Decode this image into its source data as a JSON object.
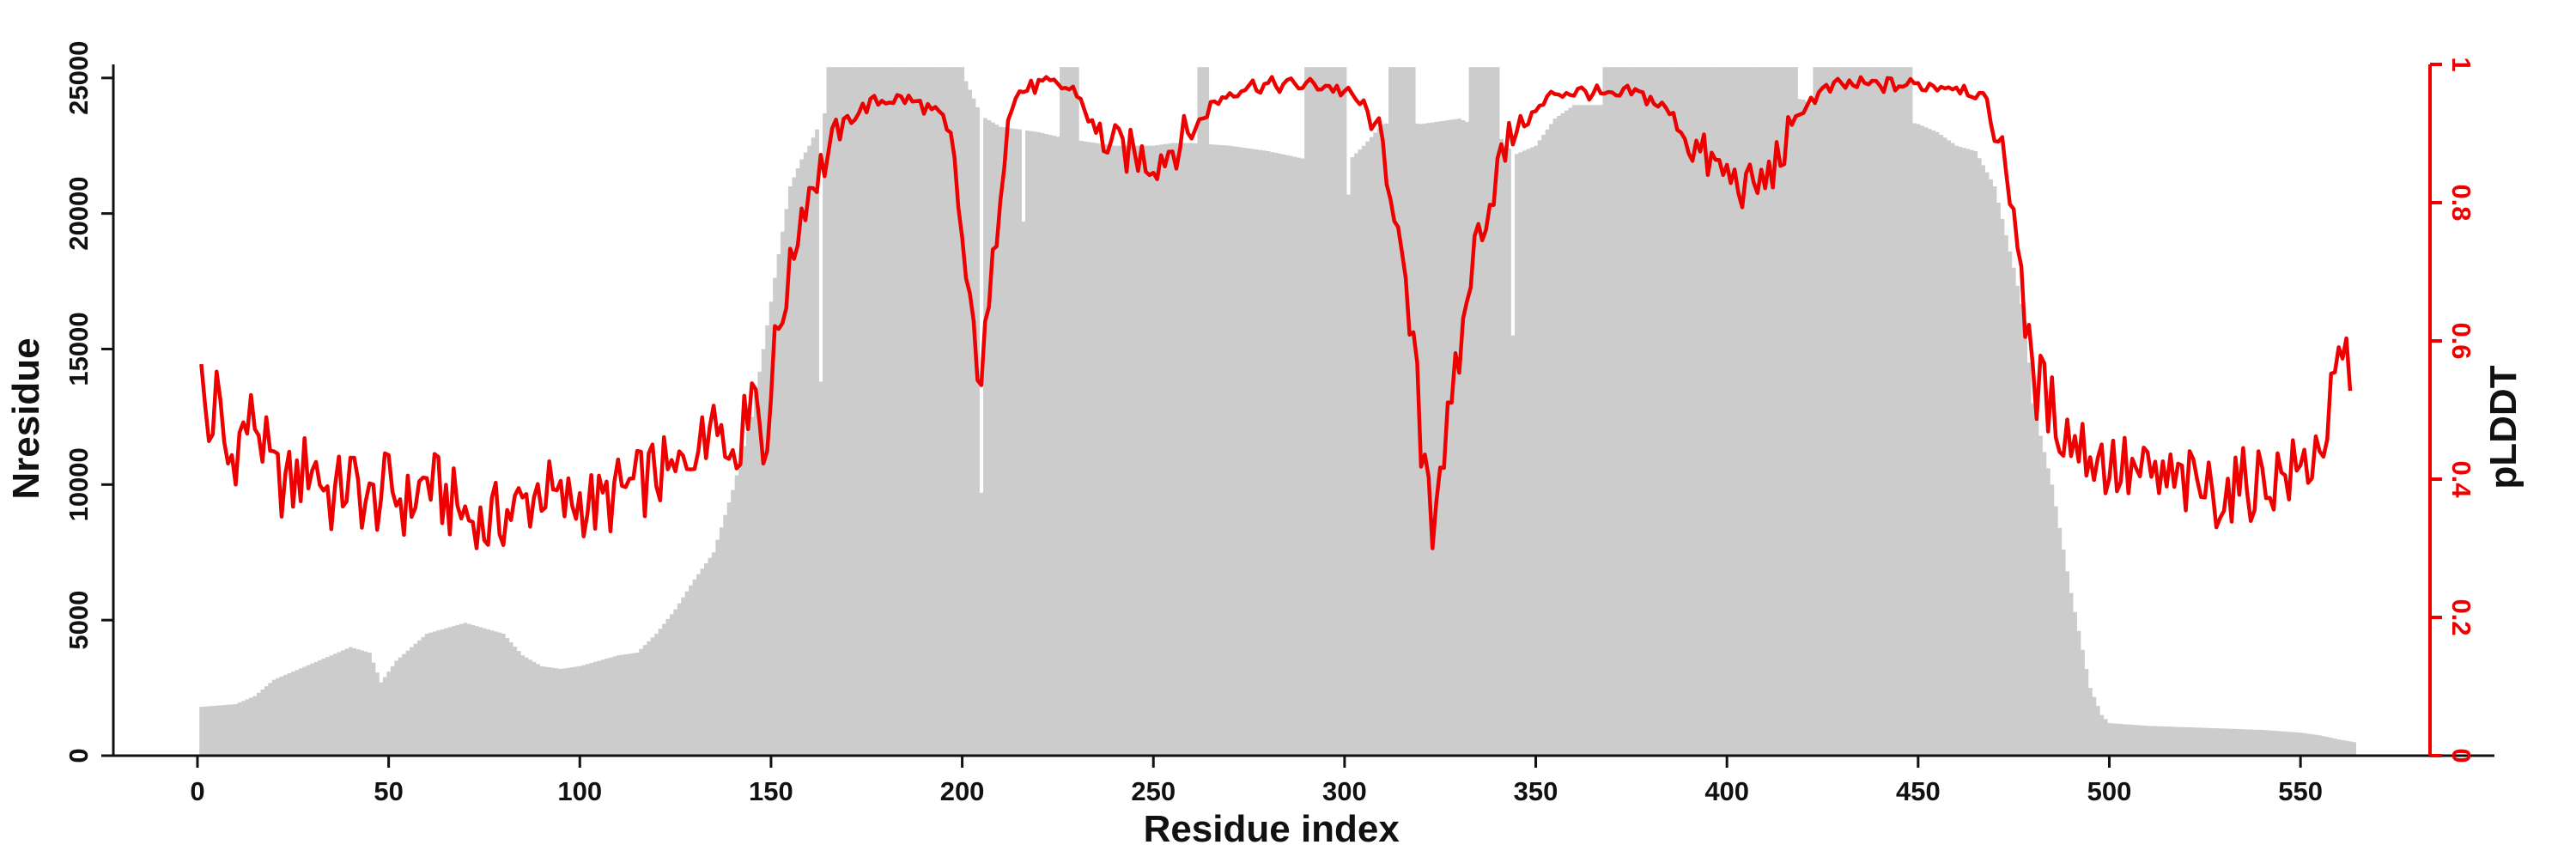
{
  "colors": {
    "bars": "#cccccc",
    "line": "#ee0000",
    "axis": "#111111",
    "right_axis": "#ee0000"
  },
  "chart_data": {
    "type": "bar+line",
    "xlabel": "Residue index",
    "ylabel_left": "Nresidue",
    "ylabel_right": "pLDDT",
    "xlim": [
      -22,
      585
    ],
    "ylim_left": [
      0,
      25500
    ],
    "ylim_right": [
      0,
      1
    ],
    "x_ticks": [
      0,
      50,
      100,
      150,
      200,
      250,
      300,
      350,
      400,
      450,
      500,
      550
    ],
    "y_left_ticks": [
      0,
      5000,
      10000,
      15000,
      20000,
      25000
    ],
    "y_right_ticks": [
      0,
      0.2,
      0.4,
      0.6,
      0.8,
      1
    ],
    "x_tick_labels": [
      "0",
      "50",
      "100",
      "150",
      "200",
      "250",
      "300",
      "350",
      "400",
      "450",
      "500",
      "550"
    ],
    "y_left_tick_labels": [
      "0",
      "5000",
      "10000",
      "15000",
      "20000",
      "25000"
    ],
    "y_right_tick_labels": [
      "0",
      "0.2",
      "0.4",
      "0.6",
      "0.8",
      "1"
    ],
    "grid": false,
    "nresidue_profile": {
      "description_points_x": [
        1,
        10,
        15,
        20,
        30,
        40,
        45,
        48,
        52,
        60,
        70,
        80,
        85,
        90,
        95,
        100,
        105,
        110,
        115,
        120,
        125,
        130,
        135,
        140,
        145,
        148,
        152,
        155,
        158,
        160,
        165,
        170,
        175,
        180,
        185,
        190,
        195,
        200,
        205,
        210,
        220,
        226,
        230,
        235,
        240,
        250,
        255,
        260,
        270,
        280,
        290,
        300,
        305,
        310,
        315,
        320,
        330,
        335,
        340,
        342,
        345,
        350,
        355,
        360,
        370,
        380,
        390,
        400,
        410,
        420,
        425,
        430,
        440,
        450,
        455,
        460,
        465,
        470,
        475,
        478,
        480,
        485,
        490,
        495,
        498,
        500,
        510,
        520,
        530,
        540,
        550,
        555,
        560,
        564
      ],
      "description_points_y": [
        1800,
        1900,
        2200,
        2800,
        3400,
        4000,
        3800,
        2700,
        3500,
        4500,
        4900,
        4500,
        3700,
        3300,
        3200,
        3300,
        3500,
        3700,
        3800,
        4500,
        5400,
        6500,
        7500,
        9800,
        12500,
        15000,
        18500,
        21000,
        22000,
        22500,
        24000,
        25000,
        25300,
        25400,
        25400,
        25400,
        25300,
        25200,
        23600,
        23200,
        23000,
        22800,
        22700,
        22600,
        22500,
        22500,
        22600,
        22600,
        22500,
        22300,
        22000,
        21800,
        22500,
        23300,
        23400,
        23300,
        23500,
        23200,
        23000,
        22500,
        22200,
        22500,
        23500,
        24000,
        24000,
        24000,
        24100,
        24300,
        24400,
        24200,
        23800,
        23700,
        23600,
        23300,
        23000,
        22500,
        22300,
        21000,
        18000,
        16000,
        13000,
        10000,
        6000,
        2500,
        1500,
        1200,
        1100,
        1050,
        1000,
        950,
        850,
        750,
        600,
        500
      ],
      "full_coverage_segments": [
        [
          165,
          200
        ],
        [
          226,
          230
        ],
        [
          262,
          264
        ],
        [
          290,
          300
        ],
        [
          312,
          318
        ],
        [
          333,
          340
        ],
        [
          368,
          418
        ],
        [
          423,
          448
        ]
      ],
      "dips": [
        {
          "x": 163,
          "value": 13800
        },
        {
          "x": 205,
          "value": 9700
        },
        {
          "x": 216,
          "value": 19700
        },
        {
          "x": 301,
          "value": 20700
        },
        {
          "x": 344,
          "value": 15500
        }
      ]
    },
    "plddt_profile": {
      "description_points_x": [
        1,
        3,
        5,
        8,
        12,
        15,
        20,
        25,
        30,
        35,
        40,
        45,
        50,
        55,
        60,
        65,
        70,
        75,
        80,
        85,
        90,
        95,
        100,
        105,
        110,
        115,
        120,
        125,
        130,
        133,
        135,
        138,
        140,
        143,
        145,
        148,
        150,
        152,
        154,
        156,
        158,
        160,
        165,
        170,
        175,
        180,
        185,
        190,
        195,
        198,
        200,
        202,
        205,
        207,
        210,
        212,
        215,
        220,
        225,
        230,
        235,
        240,
        245,
        250,
        255,
        260,
        265,
        270,
        275,
        280,
        285,
        290,
        295,
        300,
        305,
        310,
        313,
        315,
        318,
        320,
        322,
        323,
        325,
        328,
        330,
        333,
        335,
        338,
        340,
        345,
        350,
        355,
        360,
        365,
        370,
        375,
        380,
        385,
        390,
        395,
        400,
        405,
        410,
        415,
        420,
        425,
        430,
        440,
        450,
        460,
        465,
        468,
        470,
        473,
        475,
        477,
        478,
        480,
        483,
        485,
        490,
        495,
        500,
        510,
        520,
        530,
        540,
        550,
        555,
        557,
        558,
        560,
        562,
        563
      ],
      "description_points_y": [
        0.54,
        0.46,
        0.52,
        0.42,
        0.47,
        0.49,
        0.4,
        0.39,
        0.43,
        0.37,
        0.4,
        0.36,
        0.39,
        0.36,
        0.4,
        0.37,
        0.35,
        0.33,
        0.35,
        0.36,
        0.39,
        0.36,
        0.37,
        0.36,
        0.38,
        0.39,
        0.41,
        0.4,
        0.46,
        0.44,
        0.56,
        0.43,
        0.46,
        0.47,
        0.57,
        0.44,
        0.53,
        0.62,
        0.67,
        0.73,
        0.79,
        0.82,
        0.87,
        0.92,
        0.94,
        0.95,
        0.95,
        0.94,
        0.92,
        0.86,
        0.74,
        0.64,
        0.56,
        0.64,
        0.83,
        0.93,
        0.96,
        0.97,
        0.97,
        0.96,
        0.9,
        0.88,
        0.87,
        0.86,
        0.88,
        0.9,
        0.94,
        0.96,
        0.97,
        0.97,
        0.97,
        0.97,
        0.97,
        0.96,
        0.94,
        0.88,
        0.8,
        0.7,
        0.58,
        0.46,
        0.41,
        0.34,
        0.43,
        0.48,
        0.58,
        0.7,
        0.76,
        0.8,
        0.85,
        0.91,
        0.93,
        0.96,
        0.96,
        0.96,
        0.95,
        0.96,
        0.95,
        0.93,
        0.89,
        0.86,
        0.84,
        0.82,
        0.83,
        0.88,
        0.94,
        0.96,
        0.97,
        0.97,
        0.97,
        0.97,
        0.96,
        0.94,
        0.9,
        0.85,
        0.79,
        0.72,
        0.6,
        0.55,
        0.52,
        0.5,
        0.46,
        0.44,
        0.42,
        0.4,
        0.39,
        0.38,
        0.4,
        0.41,
        0.45,
        0.48,
        0.5,
        0.55,
        0.58,
        0.5
      ]
    }
  }
}
